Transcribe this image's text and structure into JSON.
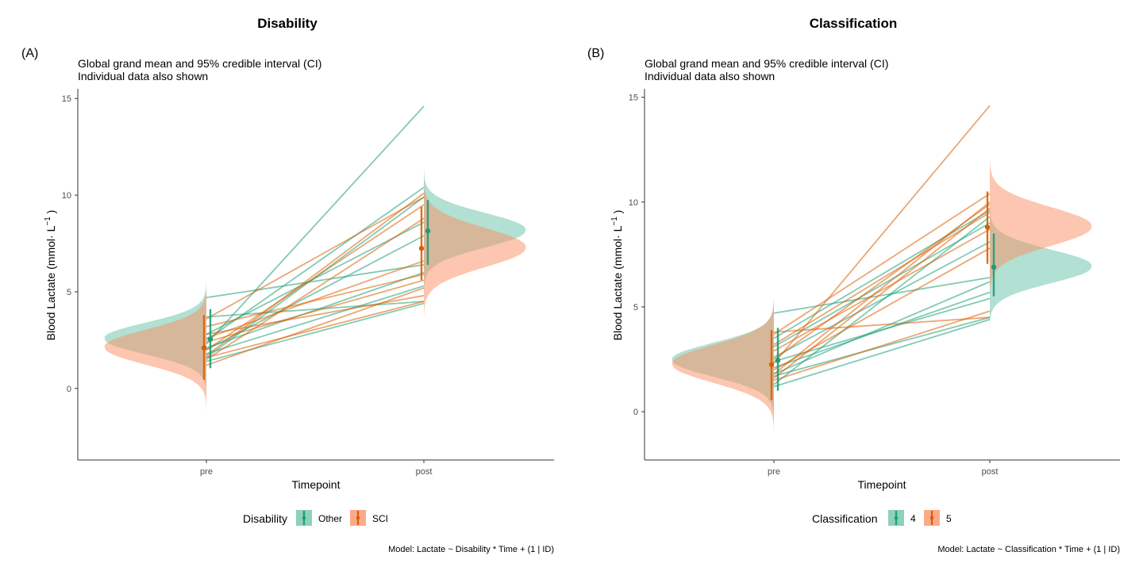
{
  "panels": [
    {
      "tag": "(A)",
      "title": "Disability",
      "subtitle_line1": "Global grand mean and 95% credible interval (CI)",
      "subtitle_line2": "Individual data also shown",
      "caption": "Model: Lactate ~ Disability * Time + (1 | ID)"
    },
    {
      "tag": "(B)",
      "title": "Classification",
      "subtitle_line1": "Global grand mean and 95% credible interval (CI)",
      "subtitle_line2": "Individual data also shown",
      "caption": "Model: Lactate ~ Classification * Time + (1 | ID)"
    }
  ],
  "colors": {
    "group1": "#1b9e77",
    "group2": "#d95f02",
    "fill1": "#66c2a5",
    "fill2": "#fc8d62",
    "axis": "#333333"
  },
  "chart_data": [
    {
      "type": "line",
      "title": "Disability",
      "xlabel": "Timepoint",
      "ylabel": "Blood Lactate (mmol·L⁻¹)",
      "ylabel_parts": {
        "base": "Blood Lactate (mmol",
        "dot": "·",
        "unit": " L",
        "exp": "−1",
        "close": " )"
      },
      "categories": [
        "pre",
        "post"
      ],
      "y_ticks": [
        "0",
        "5",
        "10",
        "15"
      ],
      "ylim": [
        -3.7,
        15.5
      ],
      "grid": false,
      "legend": {
        "position": "bottom",
        "title": "Disability",
        "entries": [
          "Other",
          "SCI"
        ]
      },
      "series": [
        {
          "name": "Other",
          "mean": [
            2.55,
            8.15
          ],
          "ci": [
            [
              1.05,
              4.1
            ],
            [
              6.4,
              9.75
            ]
          ],
          "individual": [
            [
              2.3,
              14.6
            ],
            [
              2.5,
              10.4
            ],
            [
              4.7,
              6.4
            ],
            [
              1.6,
              9.9
            ],
            [
              2.0,
              7.9
            ],
            [
              3.7,
              4.5
            ],
            [
              1.4,
              4.4
            ],
            [
              2.1,
              6.0
            ],
            [
              2.8,
              8.6
            ],
            [
              1.8,
              5.3
            ]
          ]
        },
        {
          "name": "SCI",
          "mean": [
            2.1,
            7.25
          ],
          "ci": [
            [
              0.45,
              3.8
            ],
            [
              5.6,
              9.4
            ]
          ],
          "individual": [
            [
              3.6,
              9.9
            ],
            [
              2.6,
              6.6
            ],
            [
              1.7,
              10.1
            ],
            [
              1.2,
              5.2
            ],
            [
              2.4,
              5.6
            ],
            [
              2.8,
              4.8
            ],
            [
              2.0,
              9.5
            ],
            [
              1.6,
              4.5
            ],
            [
              3.2,
              5.9
            ],
            [
              1.5,
              8.8
            ]
          ]
        }
      ]
    },
    {
      "type": "line",
      "title": "Classification",
      "xlabel": "Timepoint",
      "ylabel": "Blood Lactate (mmol·L⁻¹)",
      "ylabel_parts": {
        "base": "Blood Lactate (mmol",
        "dot": "·",
        "unit": " L",
        "exp": "−1",
        "close": " )"
      },
      "categories": [
        "pre",
        "post"
      ],
      "y_ticks": [
        "0",
        "5",
        "10",
        "15"
      ],
      "ylim": [
        -2.3,
        15.4
      ],
      "grid": false,
      "legend": {
        "position": "bottom",
        "title": "Classification",
        "entries": [
          "4",
          "5"
        ]
      },
      "series": [
        {
          "name": "4",
          "mean": [
            2.45,
            6.9
          ],
          "ci": [
            [
              1.0,
              4.0
            ],
            [
              5.5,
              8.5
            ]
          ],
          "individual": [
            [
              4.7,
              6.4
            ],
            [
              2.4,
              5.4
            ],
            [
              1.3,
              9.3
            ],
            [
              1.7,
              4.5
            ],
            [
              2.1,
              5.7
            ],
            [
              3.1,
              9.0
            ],
            [
              2.6,
              8.1
            ],
            [
              1.8,
              6.2
            ],
            [
              1.2,
              4.4
            ],
            [
              3.5,
              9.6
            ]
          ]
        },
        {
          "name": "5",
          "mean": [
            2.25,
            8.8
          ],
          "ci": [
            [
              0.55,
              3.9
            ],
            [
              7.05,
              10.5
            ]
          ],
          "individual": [
            [
              2.3,
              14.6
            ],
            [
              3.7,
              10.4
            ],
            [
              1.6,
              9.7
            ],
            [
              2.5,
              9.9
            ],
            [
              2.0,
              7.8
            ],
            [
              3.8,
              4.5
            ],
            [
              1.8,
              10.0
            ],
            [
              2.9,
              8.7
            ],
            [
              1.5,
              4.8
            ],
            [
              3.2,
              9.5
            ]
          ]
        }
      ]
    }
  ]
}
